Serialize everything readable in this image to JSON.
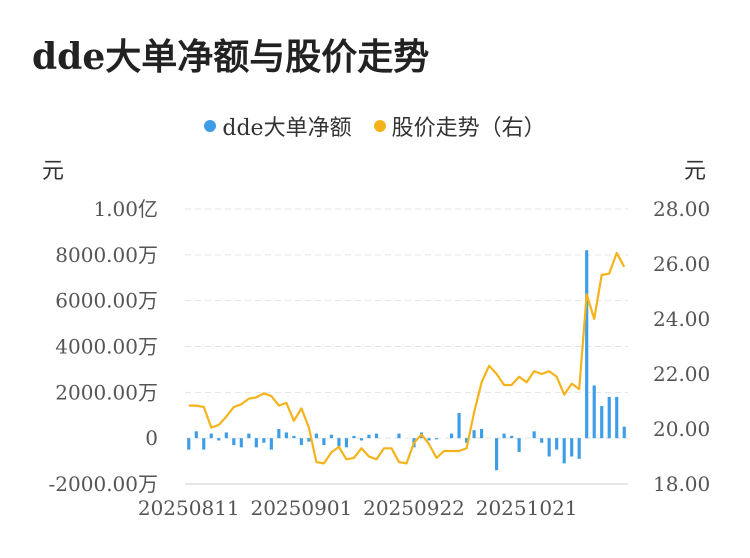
{
  "title": "dde大单净额与股价走势",
  "chart_data": {
    "type": "bar+line",
    "left_unit": "元",
    "right_unit": "元",
    "left_ticks": [
      "1.00亿",
      "8000.00万",
      "6000.00万",
      "4000.00万",
      "2000.00万",
      "0",
      "-2000.00万"
    ],
    "left_tick_values": [
      10000,
      8000,
      6000,
      4000,
      2000,
      0,
      -2000
    ],
    "right_ticks": [
      "28.00",
      "26.00",
      "24.00",
      "22.00",
      "20.00",
      "18.00"
    ],
    "right_tick_values": [
      28,
      26,
      24,
      22,
      20,
      18
    ],
    "ylim_left": [
      -2000,
      10000
    ],
    "ylim_right": [
      18,
      28
    ],
    "x_labels": [
      "20250811",
      "20250901",
      "20250922",
      "20251021"
    ],
    "x_label_indices": [
      0,
      15,
      30,
      45
    ],
    "legend_position": "top-center",
    "grid": true,
    "colors": {
      "bar": "#3d9de6",
      "line": "#f5b31b",
      "grid": "#e3e3e3",
      "axis": "#cccccc"
    },
    "series": [
      {
        "name": "dde大单净额",
        "type": "bar",
        "axis": "left",
        "values": [
          -500,
          300,
          -500,
          200,
          -100,
          250,
          -300,
          -400,
          200,
          -400,
          -200,
          -500,
          400,
          250,
          100,
          -300,
          -150,
          200,
          -300,
          150,
          -350,
          -400,
          100,
          -100,
          150,
          200,
          0,
          0,
          200,
          0,
          -400,
          250,
          -100,
          -50,
          0,
          200,
          1100,
          -200,
          350,
          400,
          0,
          -1400,
          200,
          100,
          -600,
          0,
          300,
          -200,
          -800,
          -500,
          -1100,
          -800,
          -900,
          8200,
          2300,
          1400,
          1800,
          1800,
          500
        ]
      },
      {
        "name": "股价走势（右）",
        "type": "line",
        "axis": "right",
        "values": [
          20.85,
          20.85,
          20.8,
          20.05,
          20.15,
          20.45,
          20.8,
          20.9,
          21.1,
          21.15,
          21.3,
          21.2,
          20.85,
          20.95,
          20.3,
          20.75,
          20.05,
          18.8,
          18.75,
          19.15,
          19.35,
          18.9,
          18.95,
          19.3,
          19.0,
          18.9,
          19.3,
          19.3,
          18.8,
          18.75,
          19.5,
          19.8,
          19.45,
          18.95,
          19.2,
          19.2,
          19.2,
          19.3,
          20.6,
          21.7,
          22.3,
          22.0,
          21.6,
          21.6,
          21.9,
          21.7,
          22.1,
          22.0,
          22.1,
          21.9,
          21.25,
          21.65,
          21.45,
          24.9,
          24.0,
          25.6,
          25.65,
          26.4,
          25.9
        ]
      }
    ]
  }
}
